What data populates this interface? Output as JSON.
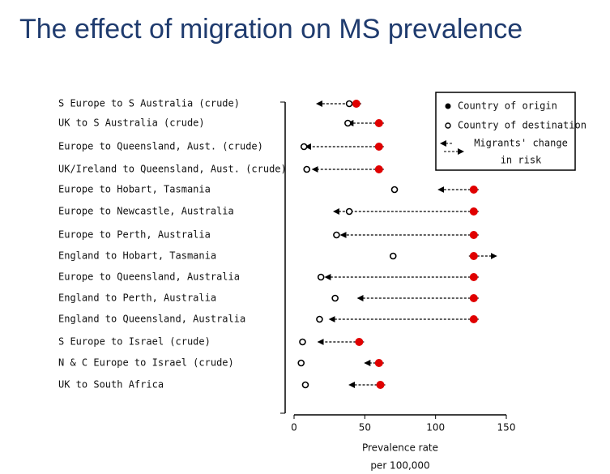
{
  "title": "The effect of migration on MS prevalence",
  "chart_data": {
    "type": "migration-dot",
    "categories": [
      "S Europe to S Australia (crude)",
      "UK to S Australia (crude)",
      "Europe to Queensland, Aust. (crude)",
      "UK/Ireland to Queensland, Aust. (crude)",
      "Europe to Hobart, Tasmania",
      "Europe to Newcastle, Australia",
      "Europe to Perth, Australia",
      "England to Hobart, Tasmania",
      "Europe to Queensland, Australia",
      "England to Perth, Australia",
      "England to Queensland, Australia",
      "S Europe to Israel (crude)",
      "N & C Europe to Israel (crude)",
      "UK to South Africa"
    ],
    "series": [
      {
        "name": "Country of origin",
        "color": "#e00000",
        "values": [
          44,
          60,
          60,
          60,
          127,
          127,
          127,
          127,
          127,
          127,
          127,
          46,
          60,
          61
        ]
      },
      {
        "name": "Country of destination",
        "color": "#000000",
        "values": [
          39,
          38,
          7,
          9,
          71,
          39,
          30,
          70,
          19,
          29,
          18,
          6,
          5,
          8
        ]
      },
      {
        "name": [
          "Migrants' change",
          "in risk"
        ],
        "color": "#000000",
        "values": [
          16,
          38,
          8,
          13,
          102,
          28,
          33,
          143,
          22,
          45,
          25,
          17,
          50,
          39
        ]
      }
    ],
    "xlim": [
      0,
      150
    ],
    "xticks": [
      0,
      50,
      100,
      150
    ],
    "xlabel": [
      "Prevalence rate",
      "per 100,000"
    ]
  }
}
